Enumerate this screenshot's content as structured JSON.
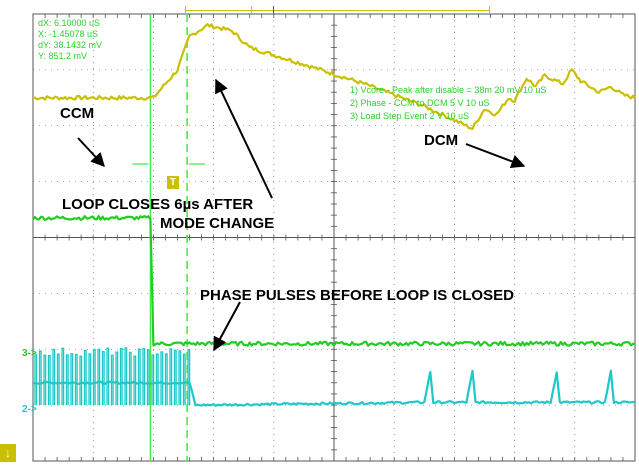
{
  "cursor_readout": {
    "dx": "dX: 6.10000 uS",
    "x": "X: -1.45078 uS",
    "dy": "dY: 38.1432 mV",
    "y": "Y: 851.2 mV"
  },
  "legend": [
    "1) Vcore - Peak after disable = 38m  20 mV   10 uS",
    "2) Phase - CCM to DCM 5  V   10 uS",
    "3) Load Step Event 2  V   10 uS"
  ],
  "annotations": {
    "ccm": "CCM",
    "dcm": "DCM",
    "loop_line1": "LOOP CLOSES 6µs AFTER",
    "loop_line2": "MODE CHANGE",
    "phase": "PHASE PULSES BEFORE LOOP IS CLOSED"
  },
  "markers": {
    "ch3": "3->",
    "ch2": "2->",
    "trigger": "T",
    "ground": "↓"
  },
  "colors": {
    "background": "#ffffff",
    "grid": "#555555",
    "ch1_vcore": "#c8c000",
    "ch2_phase": "#1ec8c8",
    "ch3_load": "#22cc22",
    "cursor": "#44ee44"
  },
  "chart_data": {
    "type": "line",
    "title": "",
    "xlabel": "",
    "ylabel": "",
    "grid": true,
    "time_div_us": 10,
    "x_divisions": 10,
    "y_divisions": 8,
    "xlim_div": [
      0,
      10
    ],
    "ylim_div": [
      0,
      8
    ],
    "cursor_delta_us": 6.1,
    "series": [
      {
        "name": "1) Vcore - Peak after disable = 38m  20 mV   10 uS",
        "x": [
          0,
          1.8,
          2.0,
          2.4,
          2.6,
          2.9,
          3.3,
          3.6,
          4.5,
          5.5,
          6.5,
          7.3,
          7.5,
          7.7,
          7.9,
          8.0,
          8.2,
          8.35,
          8.5,
          8.8,
          8.95,
          9.1,
          9.4,
          9.6,
          9.8,
          10.0
        ],
        "y": [
          6.5,
          6.5,
          6.5,
          7.0,
          7.6,
          7.8,
          7.7,
          7.4,
          7.1,
          6.75,
          6.35,
          5.95,
          6.3,
          6.2,
          6.5,
          6.45,
          6.85,
          6.7,
          6.9,
          6.75,
          7.0,
          6.8,
          6.6,
          6.7,
          6.55,
          6.5
        ]
      },
      {
        "name": "2) Phase - CCM to DCM 5  V   10 uS",
        "x": [
          0,
          2.6,
          2.7,
          6.5,
          6.6,
          6.65,
          7.2,
          7.3,
          7.35,
          8.6,
          8.7,
          8.75,
          9.5,
          9.6,
          9.65,
          10.0
        ],
        "y": [
          1.4,
          1.4,
          1.0,
          1.05,
          1.6,
          1.05,
          1.05,
          1.6,
          1.05,
          1.05,
          1.6,
          1.05,
          1.05,
          1.6,
          1.05,
          1.05
        ]
      },
      {
        "name": "3) Load Step Event 2  V   10 uS",
        "x": [
          0,
          1.95,
          2.0,
          10.0
        ],
        "y": [
          4.35,
          4.35,
          2.1,
          2.1
        ]
      }
    ]
  }
}
